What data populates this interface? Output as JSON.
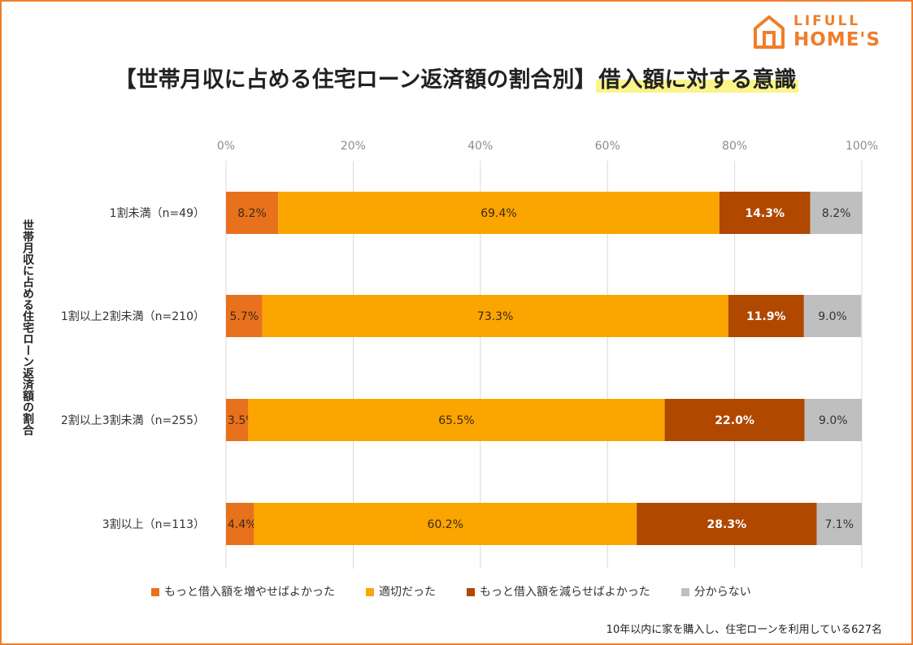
{
  "brand": {
    "line1": "LIFULL",
    "line2": "HOME'S"
  },
  "title": {
    "main": "【世帯月収に占める住宅ローン返済額の割合別】",
    "highlight": "借入額に対する意識"
  },
  "footnote": "10年以内に家を購入し、住宅ローンを利用している627名",
  "colors": {
    "border": "#ef7d2c",
    "highlight": "#fbf48a"
  },
  "chart_data": {
    "type": "bar",
    "orientation": "horizontal",
    "stacked": "percent",
    "ylabel": "世帯月収に占める住宅ローン返済額の割合",
    "xlim": [
      0,
      100
    ],
    "x_ticks": [
      "0%",
      "20%",
      "40%",
      "60%",
      "80%",
      "100%"
    ],
    "grid": true,
    "legend_position": "bottom",
    "categories": [
      "1割未満（n=49）",
      "1割以上2割未満（n=210）",
      "2割以上3割未満（n=255）",
      "3割以上（n=113）"
    ],
    "series": [
      {
        "name": "もっと借入額を増やせばよかった",
        "color": "#e8711e",
        "label_color": "#3a2a10",
        "values": [
          8.2,
          5.7,
          3.5,
          4.4
        ],
        "labels": [
          "8.2%",
          "5.7%",
          "3.5%",
          "4.4%"
        ]
      },
      {
        "name": "適切だった",
        "color": "#fba500",
        "label_color": "#3a2a10",
        "values": [
          69.4,
          73.3,
          65.5,
          60.2
        ],
        "labels": [
          "69.4%",
          "73.3%",
          "65.5%",
          "60.2%"
        ]
      },
      {
        "name": "もっと借入額を減らせばよかった",
        "color": "#b04800",
        "label_color": "#ffffff",
        "values": [
          14.3,
          11.9,
          22.0,
          28.3
        ],
        "labels": [
          "14.3%",
          "11.9%",
          "22.0%",
          "28.3%"
        ]
      },
      {
        "name": "分からない",
        "color": "#bfbfbf",
        "label_color": "#333333",
        "values": [
          8.2,
          9.0,
          9.0,
          7.1
        ],
        "labels": [
          "8.2%",
          "9.0%",
          "9.0%",
          "7.1%"
        ]
      }
    ]
  }
}
